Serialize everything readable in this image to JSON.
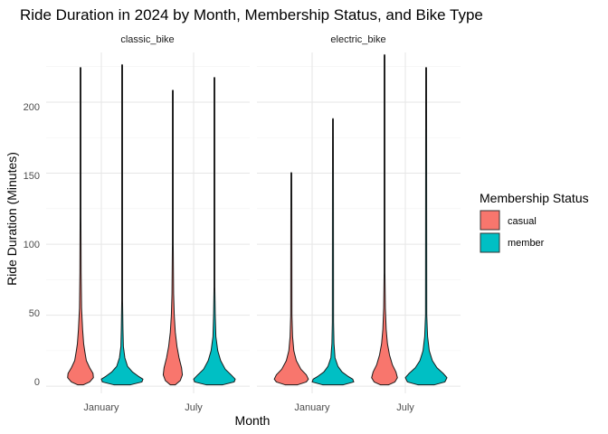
{
  "chart_data": {
    "type": "violin",
    "title": "Ride Duration in 2024 by Month, Membership Status, and Bike Type",
    "xlabel": "Month",
    "ylabel": "Ride Duration (Minutes)",
    "categories": [
      "January",
      "July"
    ],
    "facets": [
      "classic_bike",
      "electric_bike"
    ],
    "ylim": [
      -5,
      235
    ],
    "yticks": [
      0,
      50,
      100,
      150,
      200
    ],
    "grid": true,
    "legend": {
      "title": "Membership Status",
      "position": "right",
      "entries": [
        {
          "name": "casual",
          "color": "#F8766D"
        },
        {
          "name": "member",
          "color": "#00BFC4"
        }
      ]
    },
    "series": [
      {
        "facet": "classic_bike",
        "month": "January",
        "status": "casual",
        "color": "#F8766D",
        "max": 224,
        "profile": [
          [
            1,
            0.14
          ],
          [
            3,
            0.44
          ],
          [
            6,
            0.62
          ],
          [
            9,
            0.6
          ],
          [
            13,
            0.44
          ],
          [
            18,
            0.28
          ],
          [
            25,
            0.2
          ],
          [
            30,
            0.15
          ],
          [
            40,
            0.1
          ],
          [
            55,
            0.05
          ],
          [
            80,
            0.03
          ],
          [
            120,
            0.02
          ],
          [
            224,
            0.02
          ]
        ]
      },
      {
        "facet": "classic_bike",
        "month": "January",
        "status": "member",
        "color": "#00BFC4",
        "max": 226,
        "profile": [
          [
            1,
            0.4
          ],
          [
            3,
            0.95
          ],
          [
            5,
            1.0
          ],
          [
            7,
            0.78
          ],
          [
            10,
            0.5
          ],
          [
            14,
            0.26
          ],
          [
            20,
            0.13
          ],
          [
            28,
            0.06
          ],
          [
            40,
            0.04
          ],
          [
            60,
            0.02
          ],
          [
            226,
            0.02
          ]
        ]
      },
      {
        "facet": "classic_bike",
        "month": "July",
        "status": "casual",
        "color": "#F8766D",
        "max": 208,
        "profile": [
          [
            1,
            0.12
          ],
          [
            4,
            0.36
          ],
          [
            8,
            0.46
          ],
          [
            13,
            0.42
          ],
          [
            20,
            0.3
          ],
          [
            28,
            0.2
          ],
          [
            38,
            0.12
          ],
          [
            50,
            0.07
          ],
          [
            65,
            0.04
          ],
          [
            100,
            0.02
          ],
          [
            208,
            0.02
          ]
        ]
      },
      {
        "facet": "classic_bike",
        "month": "July",
        "status": "member",
        "color": "#00BFC4",
        "max": 217,
        "profile": [
          [
            1,
            0.4
          ],
          [
            3,
            0.95
          ],
          [
            5,
            1.0
          ],
          [
            8,
            0.8
          ],
          [
            12,
            0.52
          ],
          [
            18,
            0.3
          ],
          [
            25,
            0.16
          ],
          [
            35,
            0.07
          ],
          [
            50,
            0.04
          ],
          [
            70,
            0.02
          ],
          [
            217,
            0.02
          ]
        ]
      },
      {
        "facet": "electric_bike",
        "month": "January",
        "status": "casual",
        "color": "#F8766D",
        "max": 150,
        "profile": [
          [
            1,
            0.3
          ],
          [
            3,
            0.72
          ],
          [
            5,
            0.82
          ],
          [
            8,
            0.72
          ],
          [
            12,
            0.46
          ],
          [
            18,
            0.24
          ],
          [
            25,
            0.12
          ],
          [
            35,
            0.06
          ],
          [
            50,
            0.03
          ],
          [
            150,
            0.02
          ]
        ]
      },
      {
        "facet": "electric_bike",
        "month": "January",
        "status": "member",
        "color": "#00BFC4",
        "max": 188,
        "profile": [
          [
            1,
            0.5
          ],
          [
            3,
            1.0
          ],
          [
            5,
            0.95
          ],
          [
            7,
            0.72
          ],
          [
            10,
            0.44
          ],
          [
            14,
            0.24
          ],
          [
            20,
            0.1
          ],
          [
            30,
            0.05
          ],
          [
            45,
            0.03
          ],
          [
            188,
            0.02
          ]
        ]
      },
      {
        "facet": "electric_bike",
        "month": "July",
        "status": "casual",
        "color": "#F8766D",
        "max": 233,
        "profile": [
          [
            1,
            0.2
          ],
          [
            3,
            0.5
          ],
          [
            6,
            0.62
          ],
          [
            10,
            0.55
          ],
          [
            15,
            0.38
          ],
          [
            22,
            0.24
          ],
          [
            30,
            0.14
          ],
          [
            40,
            0.08
          ],
          [
            55,
            0.04
          ],
          [
            80,
            0.02
          ],
          [
            233,
            0.02
          ]
        ]
      },
      {
        "facet": "electric_bike",
        "month": "July",
        "status": "member",
        "color": "#00BFC4",
        "max": 224,
        "profile": [
          [
            1,
            0.4
          ],
          [
            3,
            0.9
          ],
          [
            6,
            1.0
          ],
          [
            9,
            0.82
          ],
          [
            13,
            0.52
          ],
          [
            18,
            0.3
          ],
          [
            25,
            0.15
          ],
          [
            35,
            0.07
          ],
          [
            50,
            0.03
          ],
          [
            224,
            0.02
          ]
        ]
      }
    ]
  }
}
